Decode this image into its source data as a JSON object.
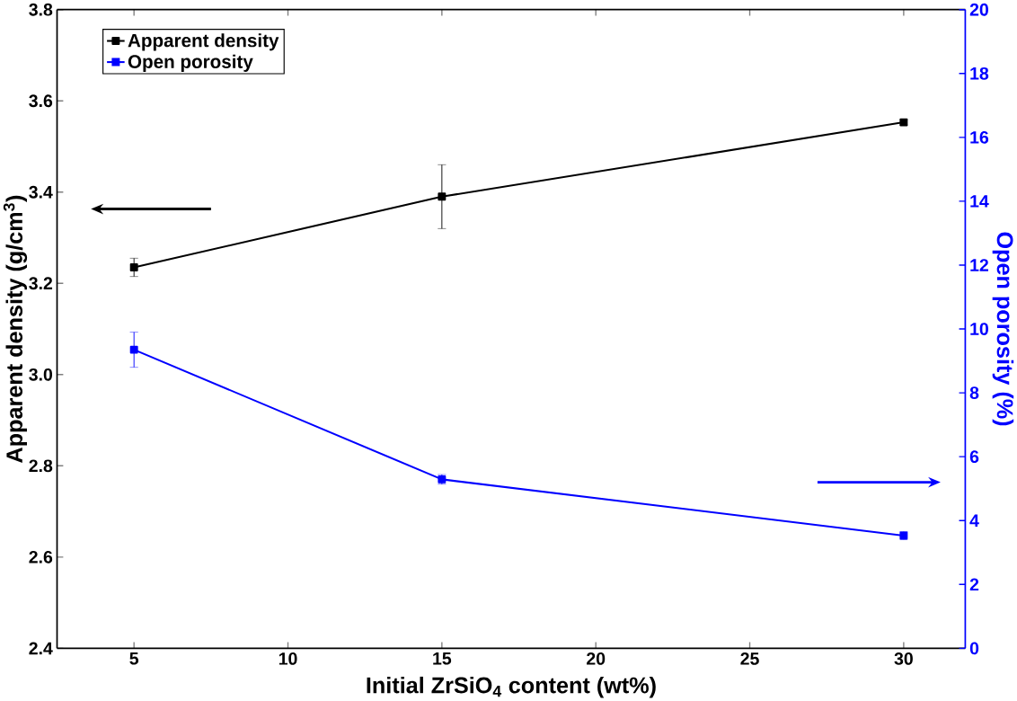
{
  "chart_data": {
    "type": "line",
    "xlabel": "Initial ZrSiO$_{4}$ content (wt%)",
    "ylabel": "Apparent density (g/cm$^{3}$)",
    "y2label": "Open porosity (%)",
    "x": [
      5,
      15,
      30
    ],
    "series": [
      {
        "name": "Apparent density",
        "color": "#000000",
        "values": [
          3.235,
          3.39,
          3.553
        ],
        "errors": [
          0.02,
          0.07,
          0.006
        ]
      },
      {
        "name": "Open porosity",
        "color": "#0000ff",
        "values": [
          9.35,
          5.29,
          3.53
        ],
        "errors": [
          0.55,
          0.15,
          0.12
        ],
        "axis": "y2"
      }
    ],
    "xlim": [
      2.5,
      32
    ],
    "xticks": [
      5,
      10,
      15,
      20,
      25,
      30
    ],
    "ylim": [
      2.4,
      3.8
    ],
    "yticks": [
      2.4,
      2.6,
      2.8,
      {
        "value": 3.0,
        "label": "3.0"
      },
      3.2,
      3.4,
      3.6,
      3.8
    ],
    "y2lim": [
      0,
      20
    ],
    "y2ticks": [
      0,
      2,
      4,
      6,
      8,
      10,
      12,
      14,
      16,
      18,
      20
    ],
    "legend": "top left",
    "marker": "square",
    "line_style": "solid",
    "grid": false
  }
}
